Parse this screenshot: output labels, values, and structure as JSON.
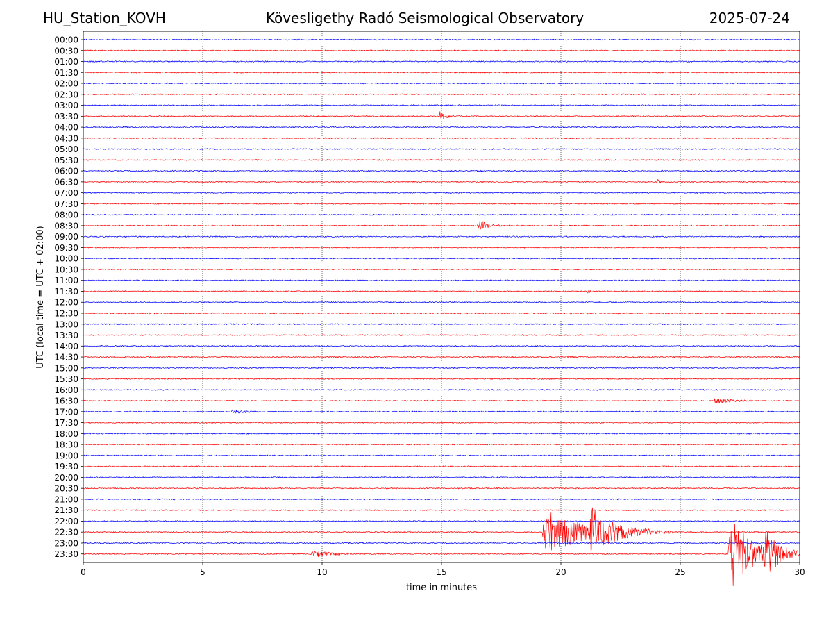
{
  "header": {
    "station": "HU_Station_KOVH",
    "observatory": "Kövesligethy Radó Seismological Observatory",
    "date": "2025-07-24"
  },
  "chart_data": {
    "type": "line",
    "title": "Kövesligethy Radó Seismological Observatory",
    "xlabel": "time in minutes",
    "ylabel": "UTC (local time = UTC + 02:00)",
    "xlim": [
      0,
      30
    ],
    "xticks": [
      0,
      5,
      10,
      15,
      20,
      25,
      30
    ],
    "grid": "vertical dotted lines at 5, 10, 15, 20, 25",
    "rows": [
      "00:00",
      "00:30",
      "01:00",
      "01:30",
      "02:00",
      "02:30",
      "03:00",
      "03:30",
      "04:00",
      "04:30",
      "05:00",
      "05:30",
      "06:00",
      "06:30",
      "07:00",
      "07:30",
      "08:00",
      "08:30",
      "09:00",
      "09:30",
      "10:00",
      "10:30",
      "11:00",
      "11:30",
      "12:00",
      "12:30",
      "13:00",
      "13:30",
      "14:00",
      "14:30",
      "15:00",
      "15:30",
      "16:00",
      "16:30",
      "17:00",
      "17:30",
      "18:00",
      "18:30",
      "19:00",
      "19:30",
      "20:00",
      "20:30",
      "21:00",
      "21:30",
      "22:00",
      "22:30",
      "23:00",
      "23:30"
    ],
    "row_colors": [
      "#0000ff",
      "#ff0000"
    ],
    "events": [
      {
        "row": "03:30",
        "start_min": 14.9,
        "duration_min": 0.7,
        "amplitude": 1.0
      },
      {
        "row": "06:30",
        "start_min": 24.0,
        "duration_min": 0.3,
        "amplitude": 0.6
      },
      {
        "row": "08:30",
        "start_min": 16.5,
        "duration_min": 1.0,
        "amplitude": 1.3
      },
      {
        "row": "11:30",
        "start_min": 21.1,
        "duration_min": 0.3,
        "amplitude": 0.5
      },
      {
        "row": "14:30",
        "start_min": 20.2,
        "duration_min": 0.5,
        "amplitude": 0.4
      },
      {
        "row": "16:30",
        "start_min": 26.4,
        "duration_min": 1.6,
        "amplitude": 0.6
      },
      {
        "row": "17:00",
        "start_min": 6.2,
        "duration_min": 1.2,
        "amplitude": 0.4
      },
      {
        "row": "22:30",
        "start_min": 19.2,
        "duration_min": 5.5,
        "amplitude": 4.0
      },
      {
        "row": "22:30",
        "start_min": 21.2,
        "duration_min": 2.5,
        "amplitude": 3.5
      },
      {
        "row": "23:30",
        "start_min": 9.5,
        "duration_min": 1.8,
        "amplitude": 0.9
      },
      {
        "row": "23:30",
        "start_min": 27.0,
        "duration_min": 3.0,
        "amplitude": 7.0
      },
      {
        "row": "23:30",
        "start_min": 28.5,
        "duration_min": 1.5,
        "amplitude": 3.5
      }
    ]
  }
}
